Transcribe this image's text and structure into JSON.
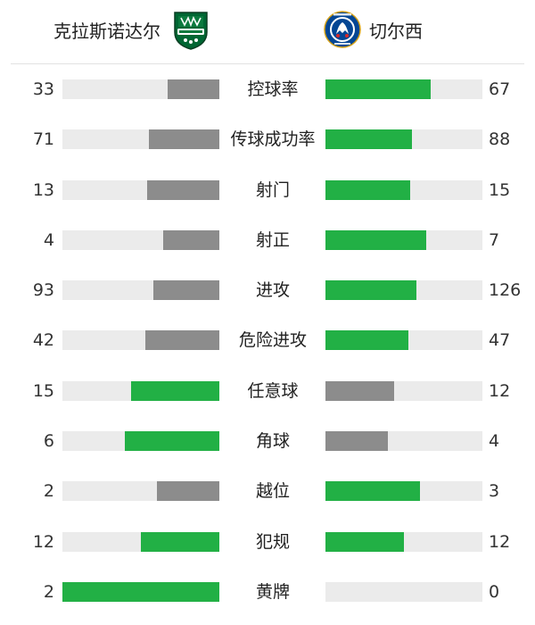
{
  "teams": {
    "home": {
      "name": "克拉斯诺达尔",
      "logo_icon": "fc-krasnodar-crest-icon",
      "logo_color": "#006633"
    },
    "away": {
      "name": "切尔西",
      "logo_icon": "chelsea-crest-icon",
      "logo_color": "#034694"
    }
  },
  "colors": {
    "winner": "#22b045",
    "loser": "#8c8c8c",
    "track": "#ebebeb"
  },
  "stats": [
    {
      "label": "控球率",
      "home": "33",
      "away": "67",
      "home_fill": 0.33,
      "away_fill": 0.67,
      "home_color": "#8c8c8c",
      "away_color": "#22b045"
    },
    {
      "label": "传球成功率",
      "home": "71",
      "away": "88",
      "home_fill": 0.45,
      "away_fill": 0.55,
      "home_color": "#8c8c8c",
      "away_color": "#22b045"
    },
    {
      "label": "射门",
      "home": "13",
      "away": "15",
      "home_fill": 0.46,
      "away_fill": 0.54,
      "home_color": "#8c8c8c",
      "away_color": "#22b045"
    },
    {
      "label": "射正",
      "home": "4",
      "away": "7",
      "home_fill": 0.36,
      "away_fill": 0.64,
      "home_color": "#8c8c8c",
      "away_color": "#22b045"
    },
    {
      "label": "进攻",
      "home": "93",
      "away": "126",
      "home_fill": 0.42,
      "away_fill": 0.58,
      "home_color": "#8c8c8c",
      "away_color": "#22b045"
    },
    {
      "label": "危险进攻",
      "home": "42",
      "away": "47",
      "home_fill": 0.47,
      "away_fill": 0.53,
      "home_color": "#8c8c8c",
      "away_color": "#22b045"
    },
    {
      "label": "任意球",
      "home": "15",
      "away": "12",
      "home_fill": 0.56,
      "away_fill": 0.44,
      "home_color": "#22b045",
      "away_color": "#8c8c8c"
    },
    {
      "label": "角球",
      "home": "6",
      "away": "4",
      "home_fill": 0.6,
      "away_fill": 0.4,
      "home_color": "#22b045",
      "away_color": "#8c8c8c"
    },
    {
      "label": "越位",
      "home": "2",
      "away": "3",
      "home_fill": 0.4,
      "away_fill": 0.6,
      "home_color": "#8c8c8c",
      "away_color": "#22b045"
    },
    {
      "label": "犯规",
      "home": "12",
      "away": "12",
      "home_fill": 0.5,
      "away_fill": 0.5,
      "home_color": "#22b045",
      "away_color": "#22b045"
    },
    {
      "label": "黄牌",
      "home": "2",
      "away": "0",
      "home_fill": 1.0,
      "away_fill": 0.0,
      "home_color": "#22b045",
      "away_color": "#22b045"
    }
  ]
}
